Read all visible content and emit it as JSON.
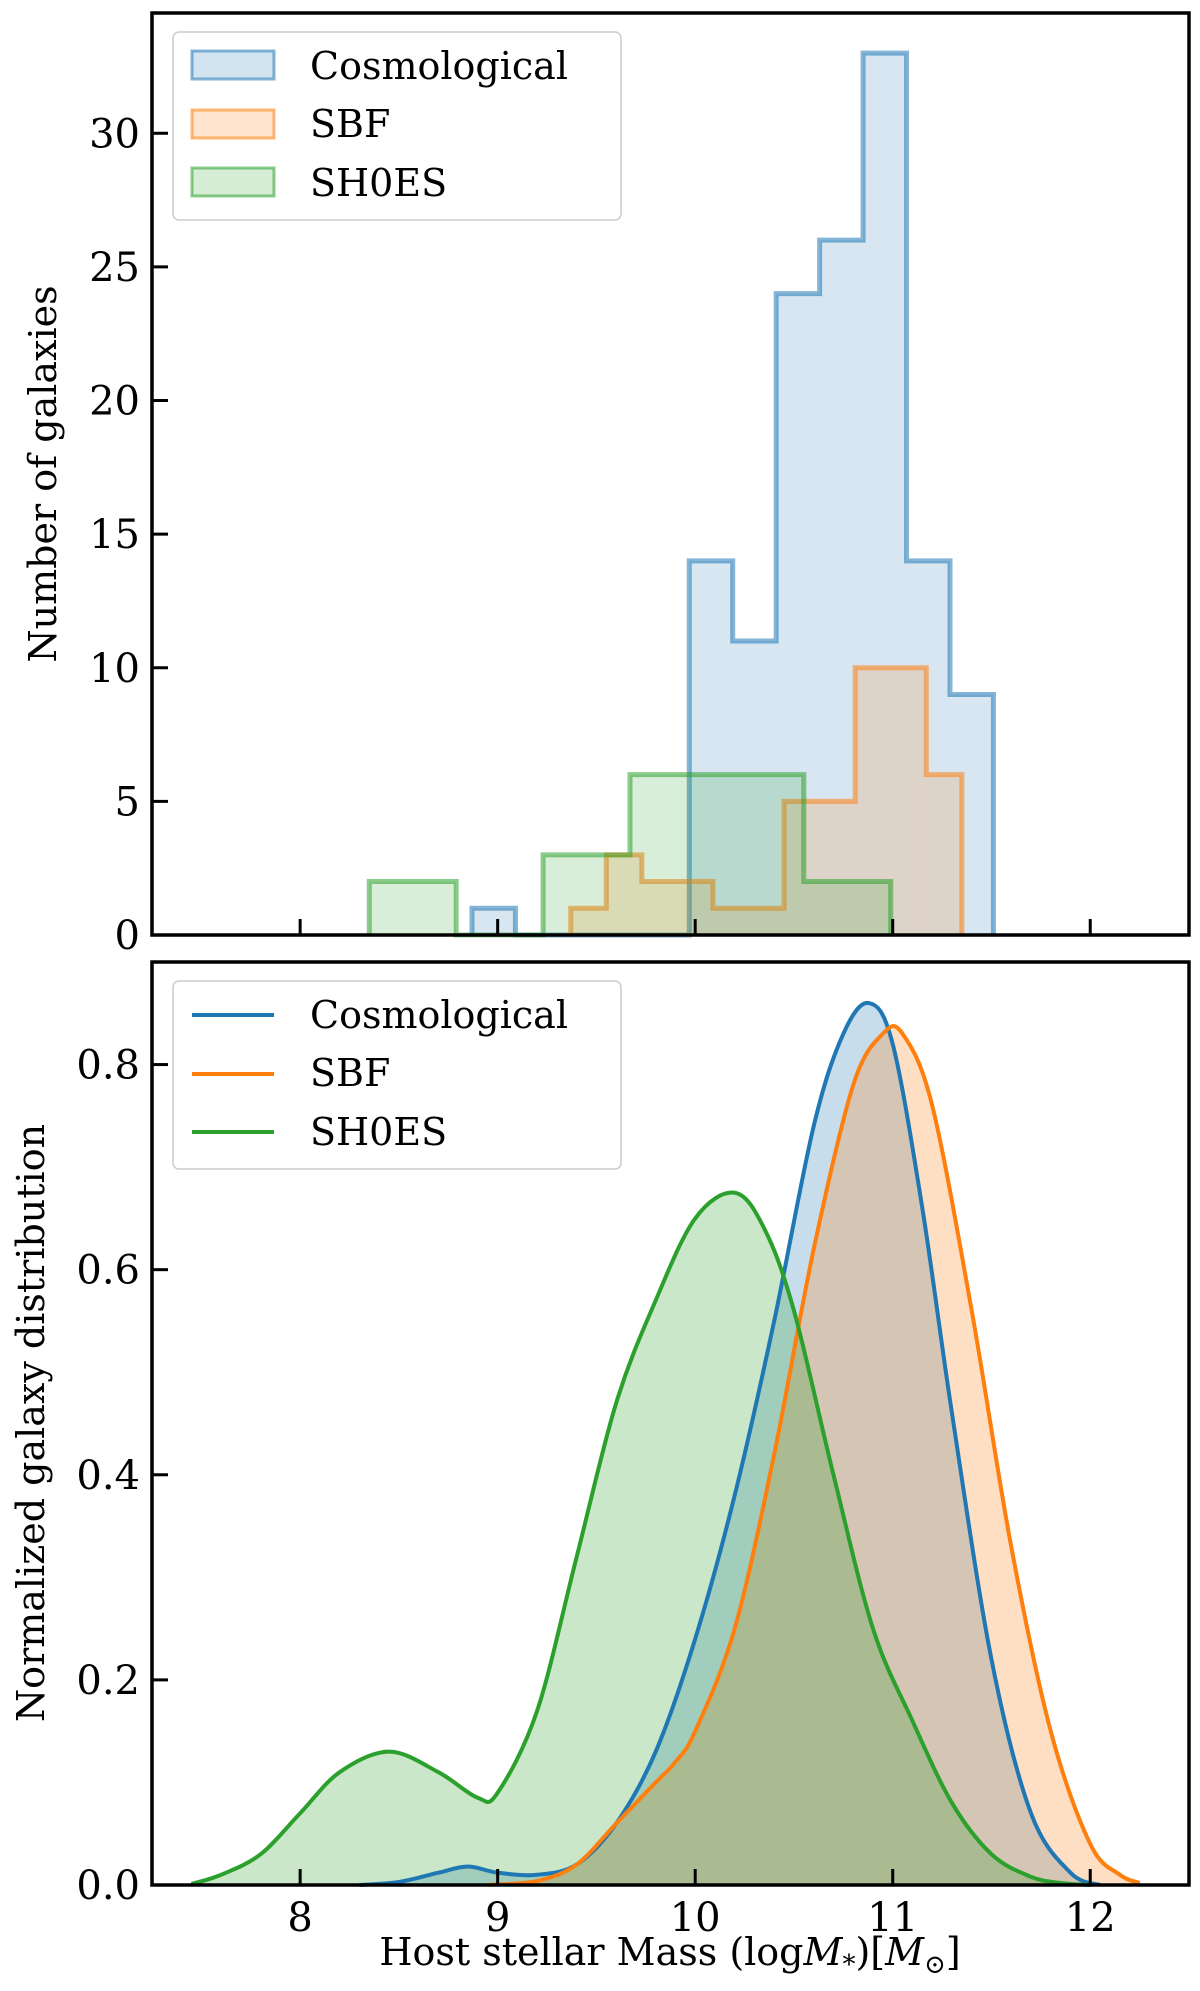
{
  "chart_data": [
    {
      "type": "histogram",
      "panel": "top",
      "title": "",
      "xlabel": "",
      "ylabel": "Number of galaxies",
      "xlim": [
        7.25,
        12.5
      ],
      "ylim": [
        0,
        34.5
      ],
      "xticks": [
        8,
        9,
        10,
        11,
        12
      ],
      "yticks": [
        0,
        5,
        10,
        15,
        20,
        25,
        30
      ],
      "ytick_labels": [
        "0",
        "5",
        "10",
        "15",
        "20",
        "25",
        "30"
      ],
      "grid": false,
      "legend_position": "top-left",
      "series": [
        {
          "name": "Cosmological",
          "color": "#1f77b4",
          "bin_edges": [
            8.87,
            9.09,
            9.31,
            9.53,
            9.75,
            9.97,
            10.19,
            10.41,
            10.63,
            10.85,
            11.07,
            11.29,
            11.51
          ],
          "counts": [
            1,
            0,
            0,
            0,
            0,
            14,
            11,
            24,
            26,
            33,
            14,
            9
          ]
        },
        {
          "name": "SBF",
          "color": "#ff7f0e",
          "bin_edges": [
            9.37,
            9.55,
            9.73,
            9.91,
            10.09,
            10.27,
            10.45,
            10.63,
            10.81,
            10.99,
            11.17,
            11.35
          ],
          "counts": [
            1,
            3,
            2,
            2,
            1,
            1,
            5,
            5,
            10,
            10,
            6
          ]
        },
        {
          "name": "SH0ES",
          "color": "#2ca02c",
          "bin_edges": [
            8.35,
            8.79,
            9.23,
            9.67,
            10.11,
            10.55,
            10.99
          ],
          "counts": [
            2,
            0,
            3,
            6,
            6,
            2
          ]
        }
      ]
    },
    {
      "type": "area",
      "panel": "bottom",
      "title": "",
      "xlabel": "Host stellar Mass (log",
      "xlabel_math": "M",
      "xlabel_sub": "*",
      "xlabel_mid": ")[",
      "xlabel_unit": "M",
      "xlabel_unit_sub": "⊙",
      "xlabel_end": "]",
      "ylabel": "Normalized galaxy distribution",
      "xlim": [
        7.25,
        12.5
      ],
      "ylim": [
        0,
        0.9
      ],
      "xticks": [
        8,
        9,
        10,
        11,
        12
      ],
      "xtick_labels": [
        "8",
        "9",
        "10",
        "11",
        "12"
      ],
      "yticks": [
        0.0,
        0.2,
        0.4,
        0.6,
        0.8
      ],
      "ytick_labels": [
        "0.0",
        "0.2",
        "0.4",
        "0.6",
        "0.8"
      ],
      "grid": false,
      "legend_position": "top-left",
      "series": [
        {
          "name": "Cosmological",
          "color": "#1f77b4",
          "x": [
            8.3,
            8.5,
            8.7,
            8.85,
            9.0,
            9.2,
            9.4,
            9.6,
            9.8,
            10.0,
            10.2,
            10.4,
            10.6,
            10.75,
            10.88,
            11.0,
            11.15,
            11.3,
            11.5,
            11.7,
            11.9,
            12.05
          ],
          "y": [
            0.0,
            0.003,
            0.012,
            0.018,
            0.012,
            0.01,
            0.02,
            0.06,
            0.13,
            0.24,
            0.38,
            0.55,
            0.74,
            0.83,
            0.86,
            0.82,
            0.66,
            0.46,
            0.22,
            0.07,
            0.012,
            0.0
          ]
        },
        {
          "name": "SBF",
          "color": "#ff7f0e",
          "x": [
            8.95,
            9.2,
            9.4,
            9.6,
            9.8,
            9.9,
            10.0,
            10.2,
            10.4,
            10.6,
            10.8,
            10.95,
            11.05,
            11.2,
            11.4,
            11.6,
            11.8,
            12.0,
            12.15,
            12.25
          ],
          "y": [
            0.0,
            0.004,
            0.02,
            0.06,
            0.1,
            0.12,
            0.15,
            0.25,
            0.42,
            0.62,
            0.78,
            0.83,
            0.83,
            0.76,
            0.56,
            0.33,
            0.15,
            0.04,
            0.01,
            0.002
          ]
        },
        {
          "name": "SH0ES",
          "color": "#2ca02c",
          "x": [
            7.45,
            7.6,
            7.8,
            8.0,
            8.2,
            8.45,
            8.7,
            8.9,
            9.0,
            9.2,
            9.4,
            9.6,
            9.8,
            10.0,
            10.2,
            10.35,
            10.5,
            10.7,
            10.9,
            11.1,
            11.3,
            11.5,
            11.7,
            11.85,
            12.0
          ],
          "y": [
            0.001,
            0.01,
            0.03,
            0.07,
            0.11,
            0.13,
            0.11,
            0.085,
            0.09,
            0.17,
            0.32,
            0.47,
            0.57,
            0.65,
            0.675,
            0.64,
            0.56,
            0.4,
            0.25,
            0.16,
            0.08,
            0.03,
            0.008,
            0.002,
            0.0
          ]
        }
      ]
    }
  ]
}
